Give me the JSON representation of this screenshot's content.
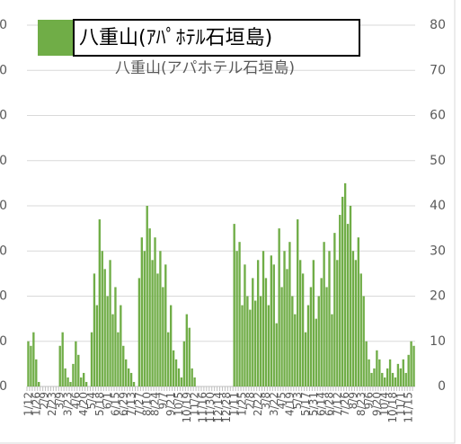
{
  "chart_data": {
    "type": "bar",
    "title": "八重山(アパホテル石垣島)",
    "series": [
      {
        "name": "八重山(ｱﾊﾟﾎﾃﾙ石垣島)",
        "color": "#70ad47",
        "values": [
          10,
          9,
          12,
          6,
          1,
          0,
          0,
          0,
          0,
          0,
          0,
          0,
          9,
          12,
          4,
          2,
          1,
          5,
          10,
          7,
          2,
          3,
          1,
          0,
          12,
          25,
          18,
          37,
          30,
          26,
          20,
          28,
          16,
          22,
          12,
          18,
          9,
          6,
          4,
          3,
          1,
          0,
          24,
          33,
          30,
          40,
          35,
          28,
          33,
          25,
          30,
          22,
          27,
          12,
          18,
          8,
          6,
          4,
          2,
          10,
          16,
          13,
          4,
          2,
          0,
          0,
          0,
          0,
          0,
          0,
          0,
          0,
          0,
          0,
          0,
          0,
          0,
          0,
          36,
          30,
          32,
          18,
          27,
          20,
          17,
          24,
          19,
          28,
          20,
          30,
          24,
          18,
          29,
          27,
          14,
          35,
          22,
          30,
          26,
          32,
          20,
          16,
          37,
          28,
          25,
          12,
          18,
          22,
          28,
          15,
          20,
          24,
          32,
          22,
          30,
          16,
          34,
          28,
          38,
          42,
          45,
          36,
          40,
          30,
          28,
          33,
          25,
          20,
          10,
          6,
          3,
          4,
          8,
          6,
          3,
          2,
          4,
          6,
          3,
          2,
          5,
          4,
          6,
          3,
          7,
          10,
          9
        ]
      }
    ],
    "categories": [
      "1/12",
      null,
      null,
      "1/26",
      null,
      null,
      "2/9",
      null,
      null,
      "2/23",
      null,
      null,
      "3/9",
      null,
      null,
      "3/23",
      null,
      null,
      "4/6",
      null,
      null,
      "4/20",
      null,
      null,
      "5/4",
      null,
      null,
      "5/18",
      null,
      null,
      "6/1",
      null,
      null,
      "6/15",
      null,
      null,
      "6/29",
      null,
      null,
      "7/13",
      null,
      null,
      "7/27",
      null,
      null,
      "8/10",
      null,
      null,
      "8/24",
      null,
      null,
      "9/7",
      null,
      null,
      "9/21",
      null,
      null,
      "10/5",
      null,
      null,
      "10/19",
      null,
      null,
      "11/2",
      null,
      null,
      "11/16",
      null,
      null,
      "11/30",
      null,
      null,
      "12/14",
      null,
      null,
      "12/28",
      null,
      null,
      "1/11",
      null,
      null,
      "1/25",
      null,
      null,
      "2/8",
      null,
      null,
      "2/22",
      null,
      null,
      "3/8",
      null,
      null,
      "3/22",
      null,
      null,
      "4/5",
      null,
      null,
      "4/19",
      null,
      null,
      "5/3",
      null,
      null,
      "5/17",
      null,
      null,
      "5/31",
      null,
      null,
      "6/14",
      null,
      null,
      "6/28",
      null,
      null,
      "7/12",
      null,
      null,
      "7/26",
      null,
      null,
      "8/9",
      null,
      null,
      "8/23",
      null,
      null,
      "9/6",
      null,
      null,
      "9/20",
      null,
      null,
      "10/4",
      null,
      null,
      "10/18",
      null,
      null,
      "11/1",
      null,
      null,
      "11/15",
      null,
      null
    ],
    "ylim": [
      0,
      80
    ],
    "yticks": [
      0,
      10,
      20,
      30,
      40,
      50,
      60,
      70,
      80
    ],
    "grid": true
  }
}
